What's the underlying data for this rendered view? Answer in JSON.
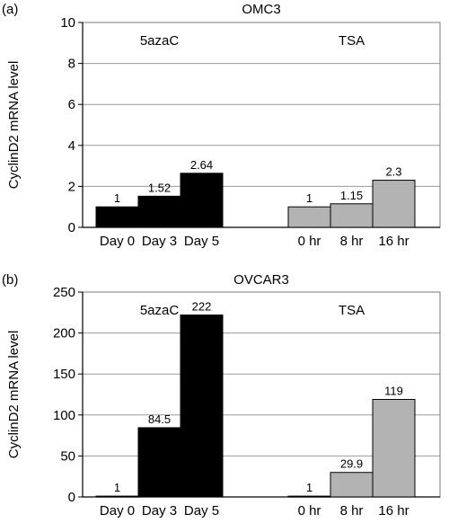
{
  "chart_data": [
    {
      "type": "bar",
      "panel_label": "(a)",
      "title": "OMC3",
      "ylabel": "CyclinD2 mRNA level",
      "xlabel": "",
      "ylim": [
        0,
        10
      ],
      "yticks": [
        0,
        2,
        4,
        6,
        8,
        10
      ],
      "grid": true,
      "groups": [
        {
          "name": "5azaC",
          "color": "#000000",
          "categories": [
            "Day 0",
            "Day 3",
            "Day 5"
          ],
          "values": [
            1,
            1.52,
            2.64
          ],
          "labels": [
            "1",
            "1.52",
            "2.64"
          ]
        },
        {
          "name": "TSA",
          "color": "#b3b3b3",
          "categories": [
            "0 hr",
            "8 hr",
            "16 hr"
          ],
          "values": [
            1,
            1.15,
            2.3
          ],
          "labels": [
            "1",
            "1.15",
            "2.3"
          ]
        }
      ]
    },
    {
      "type": "bar",
      "panel_label": "(b)",
      "title": "OVCAR3",
      "ylabel": "CyclinD2 mRNA level",
      "xlabel": "",
      "ylim": [
        0,
        250
      ],
      "yticks": [
        0,
        50,
        100,
        150,
        200,
        250
      ],
      "grid": true,
      "groups": [
        {
          "name": "5azaC",
          "color": "#000000",
          "categories": [
            "Day 0",
            "Day 3",
            "Day 5"
          ],
          "values": [
            1,
            84.5,
            222
          ],
          "labels": [
            "1",
            "84.5",
            "222"
          ]
        },
        {
          "name": "TSA",
          "color": "#b3b3b3",
          "categories": [
            "0 hr",
            "8 hr",
            "16 hr"
          ],
          "values": [
            1,
            29.9,
            119
          ],
          "labels": [
            "1",
            "29.9",
            "119"
          ]
        }
      ]
    }
  ]
}
